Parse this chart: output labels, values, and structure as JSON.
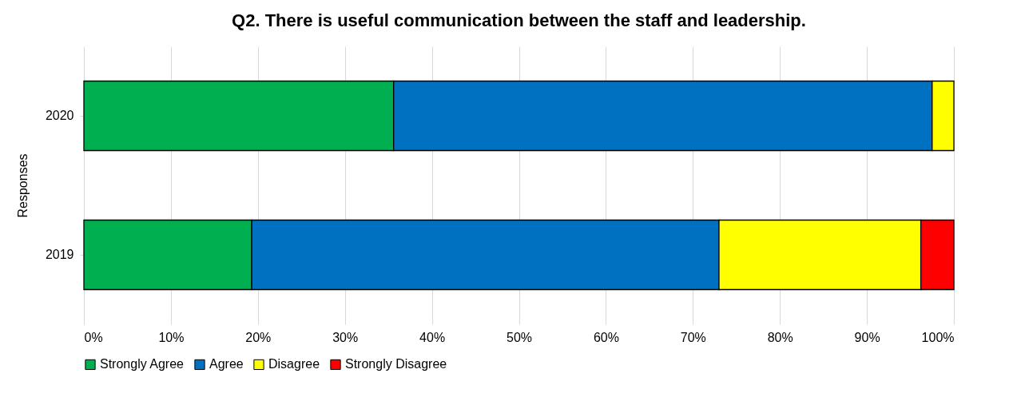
{
  "chart_data": {
    "type": "bar",
    "orientation": "horizontal",
    "stacked": true,
    "title": "Q2. There is useful communication between the staff and leadership.",
    "ylabel": "Responses",
    "categories": [
      "2020",
      "2019"
    ],
    "series": [
      {
        "name": "Strongly Agree",
        "color": "#00b050",
        "values": [
          35.6,
          19.3
        ]
      },
      {
        "name": "Agree",
        "color": "#0070c0",
        "values": [
          61.9,
          53.7
        ]
      },
      {
        "name": "Disagree",
        "color": "#ffff00",
        "values": [
          2.5,
          23.2
        ]
      },
      {
        "name": "Strongly Disagree",
        "color": "#ff0000",
        "values": [
          null,
          3.8
        ]
      }
    ],
    "xlim": [
      0,
      100
    ],
    "xticks": [
      {
        "value": 0,
        "label": "0%"
      },
      {
        "value": 10,
        "label": "10%"
      },
      {
        "value": 20,
        "label": "20%"
      },
      {
        "value": 30,
        "label": "30%"
      },
      {
        "value": 40,
        "label": "40%"
      },
      {
        "value": 50,
        "label": "50%"
      },
      {
        "value": 60,
        "label": "60%"
      },
      {
        "value": 70,
        "label": "70%"
      },
      {
        "value": 80,
        "label": "80%"
      },
      {
        "value": 90,
        "label": "90%"
      },
      {
        "value": 100,
        "label": "100%"
      }
    ],
    "grid": "x",
    "legend": "bottom"
  }
}
